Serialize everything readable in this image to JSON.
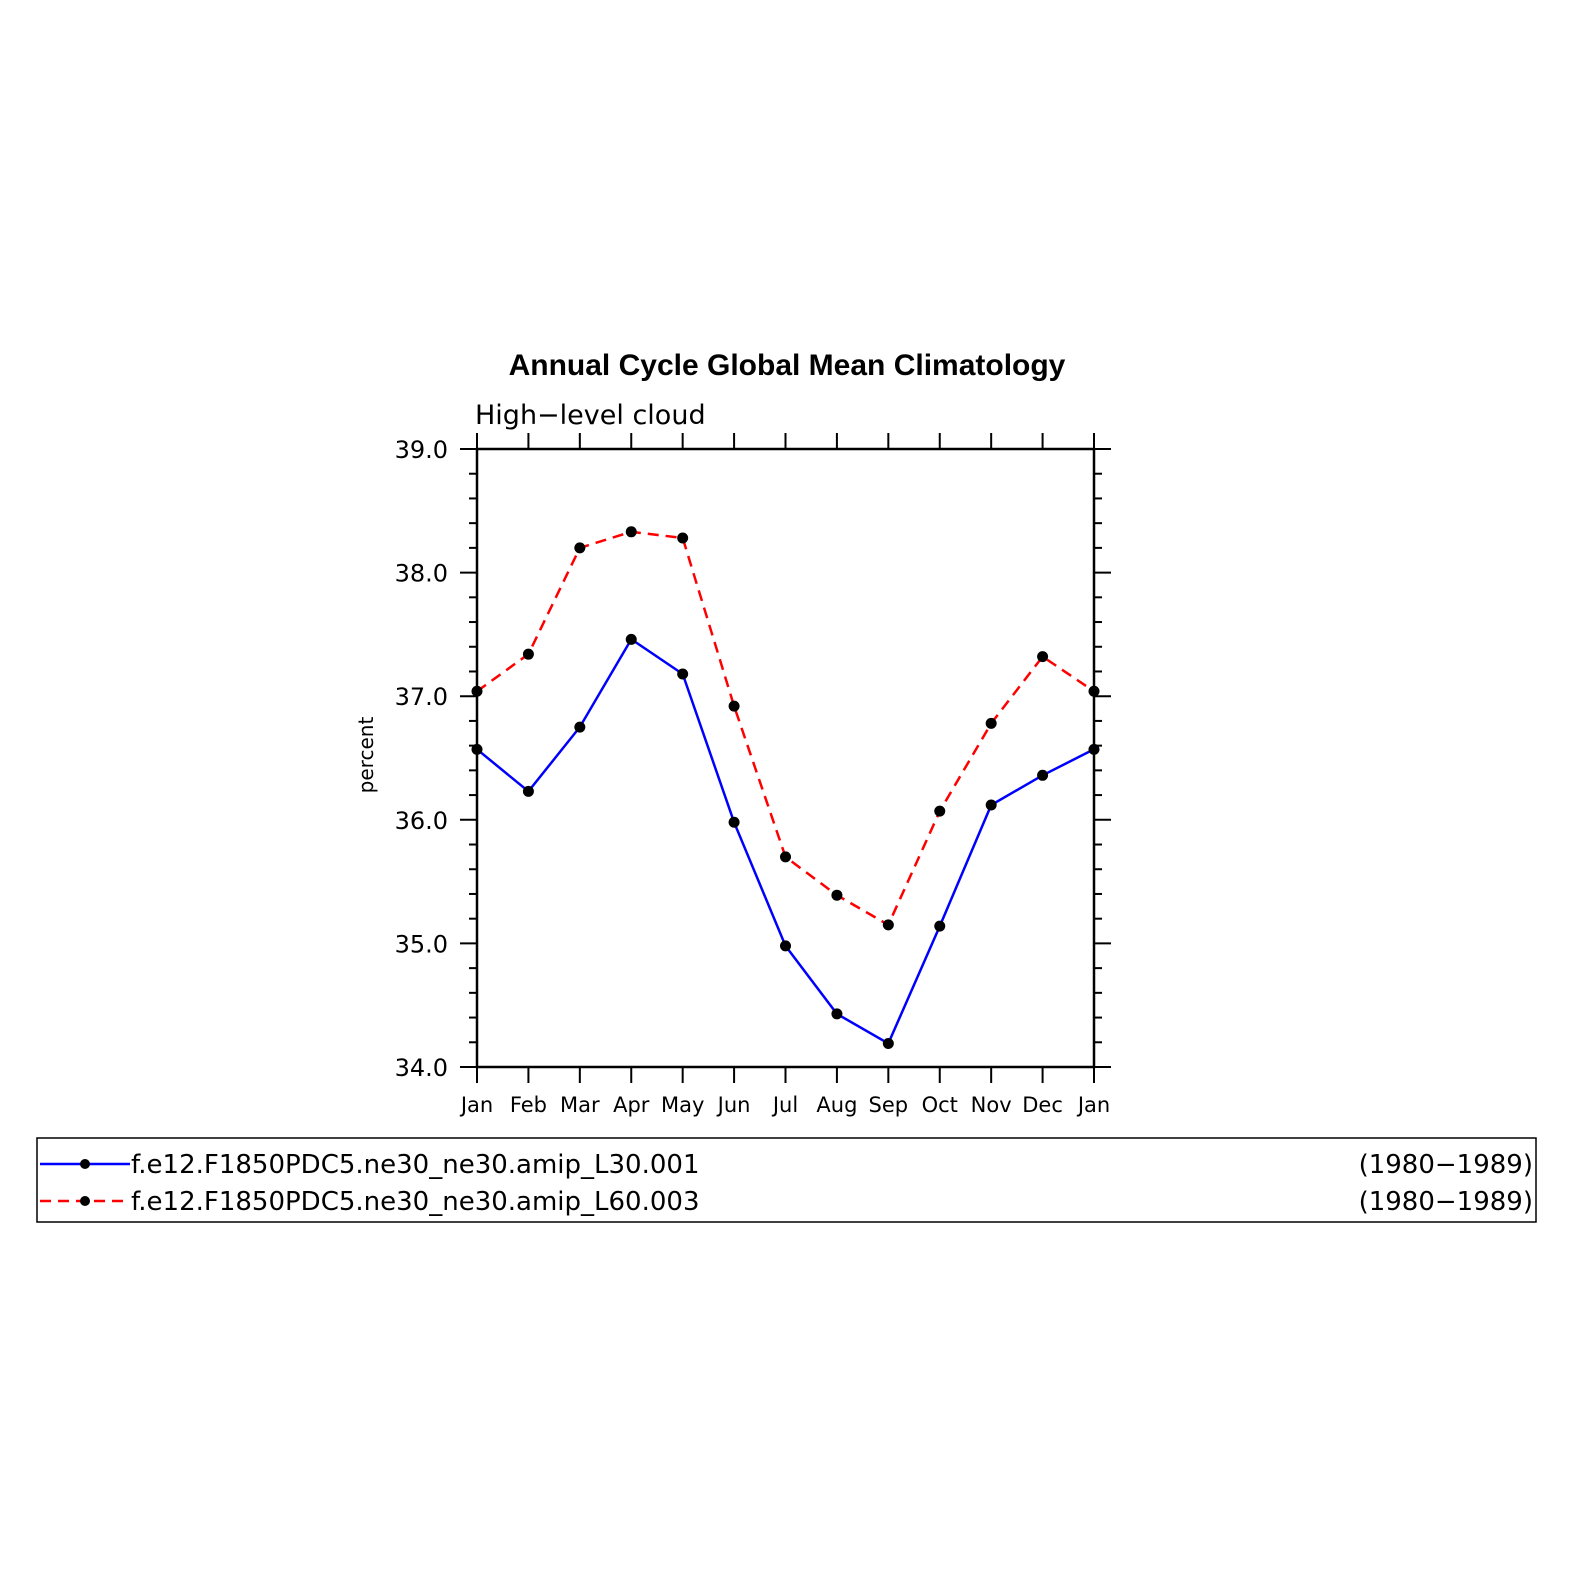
{
  "chart_data": {
    "type": "line",
    "title": "Annual Cycle Global Mean Climatology",
    "subtitle": "High−level  cloud",
    "ylabel": "percent",
    "xlabel": "",
    "categories": [
      "Jan",
      "Feb",
      "Mar",
      "Apr",
      "May",
      "Jun",
      "Jul",
      "Aug",
      "Sep",
      "Oct",
      "Nov",
      "Dec",
      "Jan"
    ],
    "ylim": [
      34.0,
      39.0
    ],
    "yticks": [
      "34.0",
      "35.0",
      "36.0",
      "37.0",
      "38.0",
      "39.0"
    ],
    "grid": false,
    "legend_position": "bottom",
    "series": [
      {
        "name": "f.e12.F1850PDC5.ne30_ne30.amip_L30.001",
        "period": "(1980−1989)",
        "color": "#0000ff",
        "line_style": "solid",
        "marker": "dot",
        "values": [
          36.57,
          36.23,
          36.75,
          37.46,
          37.18,
          35.98,
          34.98,
          34.43,
          34.19,
          35.14,
          36.12,
          36.36,
          36.57
        ]
      },
      {
        "name": "f.e12.F1850PDC5.ne30_ne30.amip_L60.003",
        "period": "(1980−1989)",
        "color": "#ff0000",
        "line_style": "dashed",
        "marker": "dot",
        "values": [
          37.04,
          37.34,
          38.2,
          38.33,
          38.28,
          36.92,
          35.7,
          35.39,
          35.15,
          36.07,
          36.78,
          37.32,
          37.04
        ]
      }
    ]
  }
}
